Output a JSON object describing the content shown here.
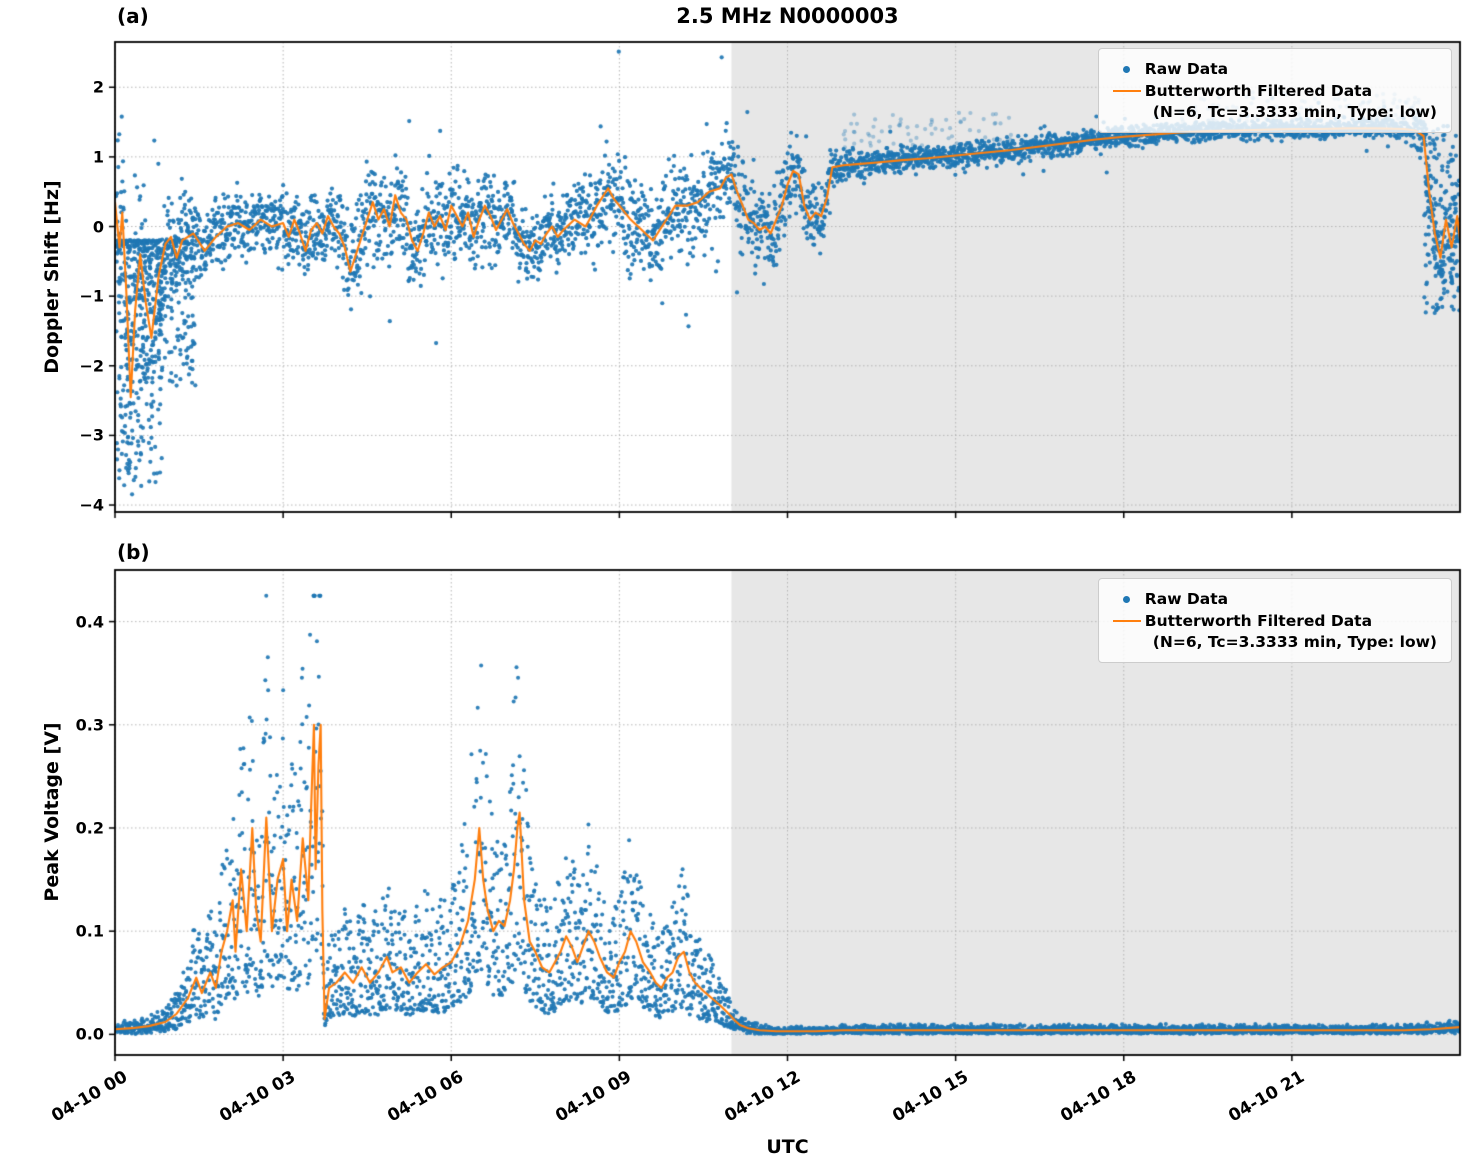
{
  "figure": {
    "title": "2.5 MHz N0000003",
    "panel_a_label": "(a)",
    "panel_b_label": "(b)",
    "xlabel": "UTC",
    "ylabel_a": "Doppler Shift [Hz]",
    "ylabel_b": "Peak Voltage [V]"
  },
  "legend": {
    "raw_label": "Raw Data",
    "filtered_label_line1": "Butterworth Filtered Data",
    "filtered_label_line2": "(N=6, Tc=3.3333 min, Type: low)"
  },
  "colors": {
    "raw": "#1f77b4",
    "filtered": "#ff7f0e",
    "shade": "#e7e7e7",
    "grid": "#b0b0b0",
    "frame": "#000000"
  },
  "chart_data": [
    {
      "type": "scatter",
      "panel": "a",
      "title": "2.5 MHz N0000003",
      "ylabel": "Doppler Shift [Hz]",
      "ylim": [
        -4.1,
        2.65
      ],
      "yticks": [
        -4,
        -3,
        -2,
        -1,
        0,
        1,
        2
      ],
      "ytick_labels": [
        "−4",
        "−3",
        "−2",
        "−1",
        "0",
        "1",
        "2"
      ],
      "x_hours_range": [
        0,
        24
      ],
      "xticks_hours": [
        0,
        3,
        6,
        9,
        12,
        15,
        18,
        21
      ],
      "xtick_labels": [
        "04-10 00",
        "04-10 03",
        "04-10 06",
        "04-10 09",
        "04-10 12",
        "04-10 15",
        "04-10 18",
        "04-10 21"
      ],
      "shaded_region_hours": [
        11,
        24
      ],
      "series_names": [
        "Raw Data",
        "Butterworth Filtered Data (N=6, Tc=3.3333 min, Type: low)"
      ],
      "filtered_series": [
        [
          0.0,
          0.35
        ],
        [
          0.08,
          -0.3
        ],
        [
          0.13,
          0.2
        ],
        [
          0.2,
          -0.9
        ],
        [
          0.28,
          -2.45
        ],
        [
          0.36,
          -1.2
        ],
        [
          0.45,
          -0.4
        ],
        [
          0.55,
          -1.1
        ],
        [
          0.65,
          -1.6
        ],
        [
          0.78,
          -0.7
        ],
        [
          0.9,
          -0.25
        ],
        [
          1.0,
          -0.15
        ],
        [
          1.1,
          -0.45
        ],
        [
          1.2,
          -0.2
        ],
        [
          1.4,
          -0.1
        ],
        [
          1.6,
          -0.35
        ],
        [
          1.8,
          -0.15
        ],
        [
          2.0,
          0.0
        ],
        [
          2.2,
          0.05
        ],
        [
          2.4,
          -0.05
        ],
        [
          2.6,
          0.1
        ],
        [
          2.8,
          0.0
        ],
        [
          3.0,
          0.05
        ],
        [
          3.1,
          -0.15
        ],
        [
          3.2,
          0.1
        ],
        [
          3.3,
          -0.1
        ],
        [
          3.4,
          -0.35
        ],
        [
          3.5,
          -0.05
        ],
        [
          3.6,
          0.05
        ],
        [
          3.7,
          -0.1
        ],
        [
          3.8,
          0.15
        ],
        [
          3.9,
          0.0
        ],
        [
          4.0,
          -0.1
        ],
        [
          4.1,
          -0.3
        ],
        [
          4.2,
          -0.65
        ],
        [
          4.3,
          -0.4
        ],
        [
          4.4,
          -0.15
        ],
        [
          4.5,
          0.1
        ],
        [
          4.6,
          0.35
        ],
        [
          4.7,
          0.1
        ],
        [
          4.8,
          0.25
        ],
        [
          4.9,
          0.0
        ],
        [
          5.0,
          0.45
        ],
        [
          5.1,
          0.2
        ],
        [
          5.2,
          0.1
        ],
        [
          5.3,
          -0.2
        ],
        [
          5.4,
          -0.35
        ],
        [
          5.5,
          -0.1
        ],
        [
          5.6,
          0.2
        ],
        [
          5.7,
          0.0
        ],
        [
          5.8,
          0.15
        ],
        [
          5.9,
          -0.05
        ],
        [
          6.0,
          0.3
        ],
        [
          6.1,
          0.15
        ],
        [
          6.2,
          0.0
        ],
        [
          6.3,
          0.2
        ],
        [
          6.4,
          -0.15
        ],
        [
          6.5,
          0.1
        ],
        [
          6.6,
          0.3
        ],
        [
          6.7,
          0.15
        ],
        [
          6.8,
          -0.05
        ],
        [
          6.9,
          0.1
        ],
        [
          7.0,
          0.25
        ],
        [
          7.1,
          0.05
        ],
        [
          7.2,
          -0.1
        ],
        [
          7.3,
          -0.25
        ],
        [
          7.4,
          -0.35
        ],
        [
          7.5,
          -0.2
        ],
        [
          7.6,
          -0.25
        ],
        [
          7.7,
          -0.1
        ],
        [
          7.8,
          0.0
        ],
        [
          7.9,
          -0.15
        ],
        [
          8.0,
          -0.05
        ],
        [
          8.2,
          0.1
        ],
        [
          8.4,
          0.0
        ],
        [
          8.6,
          0.3
        ],
        [
          8.8,
          0.55
        ],
        [
          8.9,
          0.4
        ],
        [
          9.0,
          0.3
        ],
        [
          9.1,
          0.2
        ],
        [
          9.2,
          0.1
        ],
        [
          9.4,
          -0.05
        ],
        [
          9.6,
          -0.2
        ],
        [
          9.8,
          0.05
        ],
        [
          10.0,
          0.3
        ],
        [
          10.2,
          0.3
        ],
        [
          10.4,
          0.35
        ],
        [
          10.6,
          0.5
        ],
        [
          10.8,
          0.55
        ],
        [
          10.9,
          0.7
        ],
        [
          11.0,
          0.75
        ],
        [
          11.1,
          0.5
        ],
        [
          11.2,
          0.3
        ],
        [
          11.3,
          0.1
        ],
        [
          11.4,
          0.05
        ],
        [
          11.5,
          -0.05
        ],
        [
          11.6,
          0.0
        ],
        [
          11.7,
          -0.1
        ],
        [
          11.8,
          0.1
        ],
        [
          11.9,
          0.3
        ],
        [
          12.0,
          0.6
        ],
        [
          12.1,
          0.8
        ],
        [
          12.2,
          0.75
        ],
        [
          12.3,
          0.3
        ],
        [
          12.4,
          0.1
        ],
        [
          12.5,
          0.2
        ],
        [
          12.6,
          0.15
        ],
        [
          12.7,
          0.4
        ],
        [
          12.8,
          0.85
        ],
        [
          13.0,
          0.88
        ],
        [
          13.3,
          0.9
        ],
        [
          13.6,
          0.92
        ],
        [
          14.0,
          0.95
        ],
        [
          14.5,
          0.98
        ],
        [
          15.0,
          1.02
        ],
        [
          15.5,
          1.06
        ],
        [
          16.0,
          1.1
        ],
        [
          16.5,
          1.15
        ],
        [
          17.0,
          1.2
        ],
        [
          17.5,
          1.25
        ],
        [
          18.0,
          1.29
        ],
        [
          18.5,
          1.32
        ],
        [
          19.0,
          1.35
        ],
        [
          19.5,
          1.37
        ],
        [
          20.0,
          1.38
        ],
        [
          20.5,
          1.39
        ],
        [
          21.0,
          1.4
        ],
        [
          21.5,
          1.4
        ],
        [
          22.0,
          1.41
        ],
        [
          22.5,
          1.41
        ],
        [
          23.0,
          1.4
        ],
        [
          23.2,
          1.38
        ],
        [
          23.35,
          1.3
        ],
        [
          23.45,
          0.5
        ],
        [
          23.55,
          -0.1
        ],
        [
          23.65,
          -0.45
        ],
        [
          23.75,
          0.1
        ],
        [
          23.85,
          -0.3
        ],
        [
          23.95,
          0.15
        ],
        [
          24.0,
          -0.2
        ]
      ],
      "raw_noise_envelope": [
        [
          0,
          1.1
        ],
        [
          0.3,
          1.3
        ],
        [
          0.6,
          1.0
        ],
        [
          0.9,
          0.6
        ],
        [
          1.2,
          0.5
        ],
        [
          1.6,
          0.4
        ],
        [
          2.0,
          0.35
        ],
        [
          3.0,
          0.35
        ],
        [
          3.8,
          0.4
        ],
        [
          4.2,
          0.55
        ],
        [
          4.6,
          0.6
        ],
        [
          5.0,
          0.55
        ],
        [
          5.5,
          0.5
        ],
        [
          6.0,
          0.5
        ],
        [
          6.5,
          0.45
        ],
        [
          7.0,
          0.45
        ],
        [
          7.5,
          0.4
        ],
        [
          8.0,
          0.4
        ],
        [
          8.6,
          0.45
        ],
        [
          9.0,
          0.5
        ],
        [
          9.5,
          0.55
        ],
        [
          10.0,
          0.45
        ],
        [
          10.5,
          0.45
        ],
        [
          11.0,
          0.5
        ],
        [
          11.5,
          0.45
        ],
        [
          12.0,
          0.45
        ],
        [
          12.6,
          0.35
        ],
        [
          12.9,
          0.18
        ],
        [
          13.5,
          0.14
        ],
        [
          15,
          0.13
        ],
        [
          17,
          0.12
        ],
        [
          19,
          0.11
        ],
        [
          21,
          0.1
        ],
        [
          22.5,
          0.1
        ],
        [
          23.1,
          0.12
        ],
        [
          23.4,
          0.35
        ],
        [
          23.7,
          0.45
        ],
        [
          24,
          0.4
        ]
      ],
      "raw_extra_clusters": [
        {
          "t_start": 0.03,
          "t_end": 0.85,
          "count": 380,
          "v_from": -0.2,
          "v_to": -3.75,
          "power": 2.2,
          "alpha": 0.9
        },
        {
          "t_start": 0.85,
          "t_end": 1.45,
          "count": 150,
          "v_from": -0.2,
          "v_to": -2.3,
          "power": 2.0,
          "alpha": 0.9
        },
        {
          "t_start": 12.9,
          "t_end": 16.0,
          "count": 70,
          "v_from": 1.1,
          "v_to": 1.65,
          "power": 1.0,
          "alpha": 0.35
        },
        {
          "t_start": 19.0,
          "t_end": 23.3,
          "count": 140,
          "v_from": 1.45,
          "v_to": 1.95,
          "power": 1.2,
          "alpha": 0.35
        },
        {
          "t_start": 23.35,
          "t_end": 24.0,
          "count": 150,
          "v_from": -1.35,
          "v_to": 1.45,
          "power": 1.0,
          "alpha": 0.9
        }
      ]
    },
    {
      "type": "scatter",
      "panel": "b",
      "ylabel": "Peak Voltage [V]",
      "ylim": [
        -0.02,
        0.45
      ],
      "yticks": [
        0.0,
        0.1,
        0.2,
        0.3,
        0.4
      ],
      "ytick_labels": [
        "0.0",
        "0.1",
        "0.2",
        "0.3",
        "0.4"
      ],
      "x_hours_range": [
        0,
        24
      ],
      "xticks_hours": [
        0,
        3,
        6,
        9,
        12,
        15,
        18,
        21
      ],
      "xtick_labels": [
        "04-10 00",
        "04-10 03",
        "04-10 06",
        "04-10 09",
        "04-10 12",
        "04-10 15",
        "04-10 18",
        "04-10 21"
      ],
      "shaded_region_hours": [
        11,
        24
      ],
      "series_names": [
        "Raw Data",
        "Butterworth Filtered Data (N=6, Tc=3.3333 min, Type: low)"
      ],
      "filtered_series": [
        [
          0.0,
          0.005
        ],
        [
          0.3,
          0.006
        ],
        [
          0.6,
          0.008
        ],
        [
          0.9,
          0.012
        ],
        [
          1.1,
          0.02
        ],
        [
          1.3,
          0.035
        ],
        [
          1.45,
          0.055
        ],
        [
          1.55,
          0.04
        ],
        [
          1.7,
          0.06
        ],
        [
          1.8,
          0.045
        ],
        [
          1.9,
          0.08
        ],
        [
          2.0,
          0.1
        ],
        [
          2.1,
          0.13
        ],
        [
          2.15,
          0.08
        ],
        [
          2.25,
          0.16
        ],
        [
          2.35,
          0.1
        ],
        [
          2.45,
          0.2
        ],
        [
          2.52,
          0.12
        ],
        [
          2.6,
          0.09
        ],
        [
          2.7,
          0.21
        ],
        [
          2.8,
          0.1
        ],
        [
          2.9,
          0.15
        ],
        [
          3.0,
          0.17
        ],
        [
          3.07,
          0.1
        ],
        [
          3.15,
          0.15
        ],
        [
          3.25,
          0.11
        ],
        [
          3.35,
          0.19
        ],
        [
          3.45,
          0.13
        ],
        [
          3.5,
          0.22
        ],
        [
          3.55,
          0.3
        ],
        [
          3.58,
          0.16
        ],
        [
          3.63,
          0.26
        ],
        [
          3.67,
          0.3
        ],
        [
          3.7,
          0.12
        ],
        [
          3.74,
          0.015
        ],
        [
          3.82,
          0.045
        ],
        [
          3.95,
          0.05
        ],
        [
          4.1,
          0.06
        ],
        [
          4.25,
          0.05
        ],
        [
          4.4,
          0.065
        ],
        [
          4.55,
          0.05
        ],
        [
          4.7,
          0.06
        ],
        [
          4.85,
          0.075
        ],
        [
          4.95,
          0.06
        ],
        [
          5.1,
          0.065
        ],
        [
          5.25,
          0.05
        ],
        [
          5.4,
          0.06
        ],
        [
          5.55,
          0.068
        ],
        [
          5.7,
          0.058
        ],
        [
          5.85,
          0.065
        ],
        [
          6.0,
          0.07
        ],
        [
          6.15,
          0.085
        ],
        [
          6.3,
          0.11
        ],
        [
          6.42,
          0.15
        ],
        [
          6.5,
          0.2
        ],
        [
          6.57,
          0.15
        ],
        [
          6.65,
          0.12
        ],
        [
          6.75,
          0.1
        ],
        [
          6.85,
          0.11
        ],
        [
          6.95,
          0.105
        ],
        [
          7.05,
          0.13
        ],
        [
          7.12,
          0.16
        ],
        [
          7.18,
          0.2
        ],
        [
          7.22,
          0.215
        ],
        [
          7.3,
          0.13
        ],
        [
          7.4,
          0.09
        ],
        [
          7.5,
          0.08
        ],
        [
          7.62,
          0.065
        ],
        [
          7.75,
          0.06
        ],
        [
          7.85,
          0.07
        ],
        [
          7.95,
          0.08
        ],
        [
          8.05,
          0.095
        ],
        [
          8.15,
          0.085
        ],
        [
          8.25,
          0.07
        ],
        [
          8.35,
          0.085
        ],
        [
          8.45,
          0.1
        ],
        [
          8.55,
          0.09
        ],
        [
          8.65,
          0.075
        ],
        [
          8.78,
          0.06
        ],
        [
          8.9,
          0.055
        ],
        [
          9.0,
          0.07
        ],
        [
          9.1,
          0.08
        ],
        [
          9.2,
          0.1
        ],
        [
          9.3,
          0.09
        ],
        [
          9.42,
          0.07
        ],
        [
          9.55,
          0.06
        ],
        [
          9.65,
          0.05
        ],
        [
          9.75,
          0.045
        ],
        [
          9.85,
          0.055
        ],
        [
          9.95,
          0.06
        ],
        [
          10.05,
          0.075
        ],
        [
          10.15,
          0.08
        ],
        [
          10.25,
          0.06
        ],
        [
          10.35,
          0.05
        ],
        [
          10.5,
          0.042
        ],
        [
          10.65,
          0.035
        ],
        [
          10.8,
          0.028
        ],
        [
          10.95,
          0.02
        ],
        [
          11.05,
          0.014
        ],
        [
          11.15,
          0.009
        ],
        [
          11.3,
          0.006
        ],
        [
          11.5,
          0.004
        ],
        [
          11.8,
          0.003
        ],
        [
          12.5,
          0.003
        ],
        [
          13.0,
          0.004
        ],
        [
          14.0,
          0.004
        ],
        [
          15.0,
          0.004
        ],
        [
          16.0,
          0.004
        ],
        [
          17.0,
          0.004
        ],
        [
          18.0,
          0.004
        ],
        [
          19.0,
          0.004
        ],
        [
          20.0,
          0.004
        ],
        [
          21.0,
          0.004
        ],
        [
          22.0,
          0.004
        ],
        [
          23.0,
          0.004
        ],
        [
          23.5,
          0.005
        ],
        [
          24.0,
          0.007
        ]
      ],
      "raw_envelope_model": {
        "low_factor": 0.35,
        "high_factor": 2.1,
        "power": 1.6,
        "jitter": 0.004,
        "cap": 0.425
      }
    }
  ]
}
